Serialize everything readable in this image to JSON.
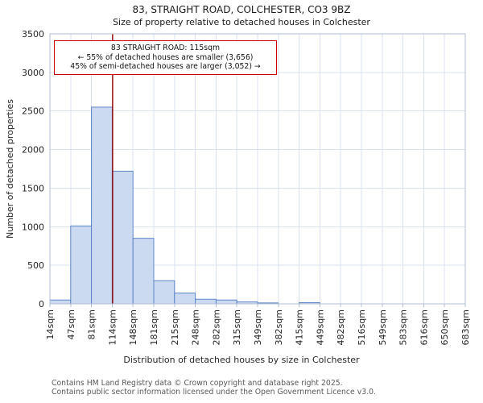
{
  "chart_data": {
    "type": "bar",
    "title": "83, STRAIGHT ROAD, COLCHESTER, CO3 9BZ",
    "subtitle": "Size of property relative to detached houses in Colchester",
    "xlabel": "Distribution of detached houses by size in Colchester",
    "ylabel": "Number of detached properties",
    "bin_labels": [
      "14sqm",
      "47sqm",
      "81sqm",
      "114sqm",
      "148sqm",
      "181sqm",
      "215sqm",
      "248sqm",
      "282sqm",
      "315sqm",
      "349sqm",
      "382sqm",
      "415sqm",
      "449sqm",
      "482sqm",
      "516sqm",
      "549sqm",
      "583sqm",
      "616sqm",
      "650sqm",
      "683sqm"
    ],
    "values": [
      50,
      1010,
      2550,
      1720,
      850,
      300,
      140,
      60,
      50,
      25,
      12,
      0,
      15,
      0,
      0,
      0,
      0,
      0,
      0,
      0
    ],
    "ylim": [
      0,
      3500
    ],
    "ytick_step": 500,
    "x_range_sqm": [
      14,
      683
    ],
    "marker_value_sqm": 115,
    "grid": true,
    "legend": "none",
    "bar_fill": "#ccdaf1",
    "bar_stroke": "#5c85c7",
    "grid_color": "#d9e1f2",
    "spine_color": "#b0bdd4",
    "marker_color": "#990000"
  },
  "annotation": {
    "line1": "83 STRAIGHT ROAD: 115sqm",
    "line2": "← 55% of detached houses are smaller (3,656)",
    "line3": "45% of semi-detached houses are larger (3,052) →"
  },
  "footer": {
    "line1": "Contains HM Land Registry data © Crown copyright and database right 2025.",
    "line2": "Contains public sector information licensed under the Open Government Licence v3.0."
  }
}
